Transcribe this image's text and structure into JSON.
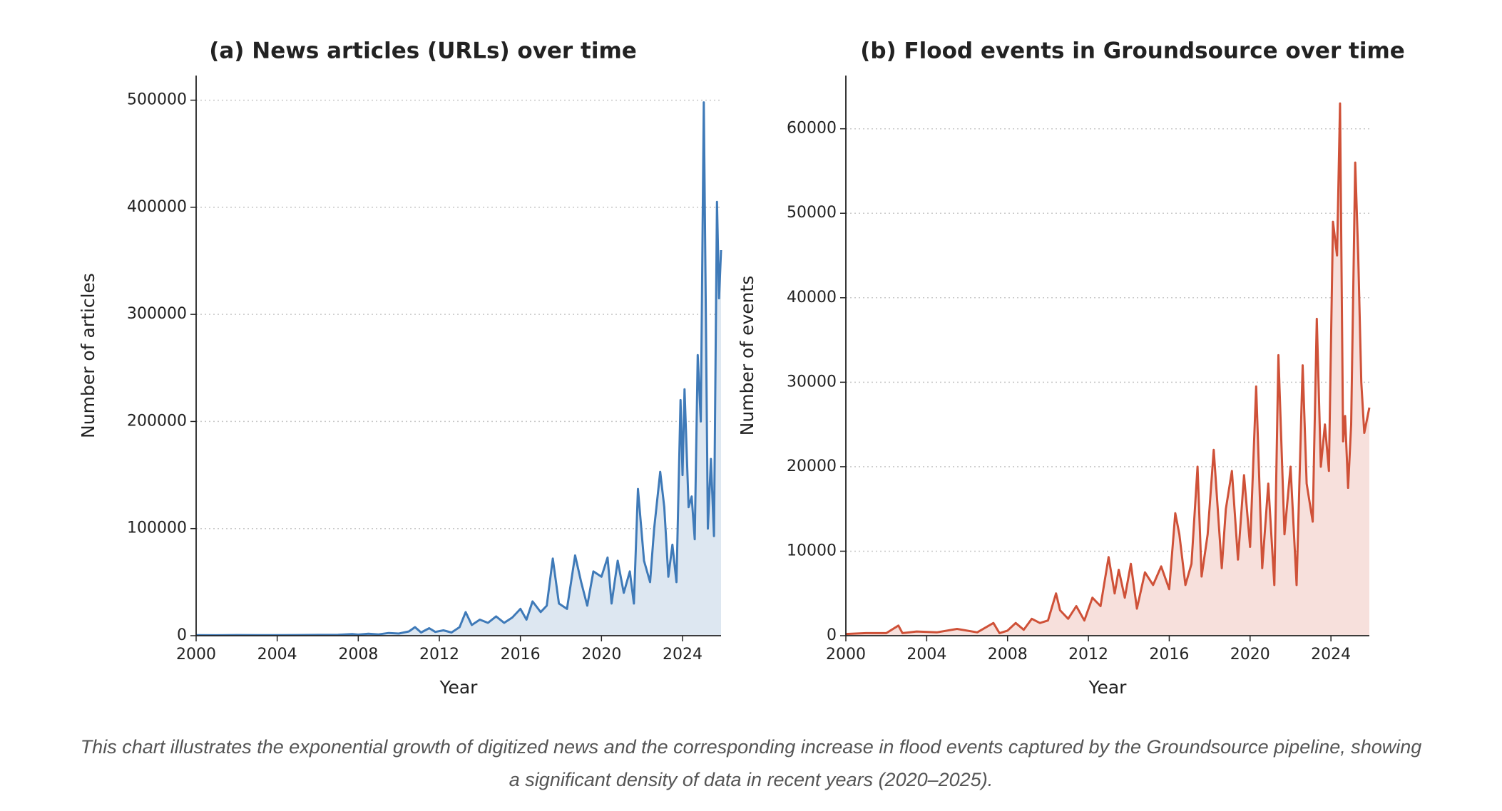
{
  "chart_data": [
    {
      "type": "line",
      "title": "(a)  News articles (URLs) over time",
      "x_label": "Year",
      "y_label": "Number of articles",
      "xlim": [
        2000,
        2025.9
      ],
      "ylim": [
        0,
        523000
      ],
      "xticks": [
        2000,
        2004,
        2008,
        2012,
        2016,
        2020,
        2024
      ],
      "yticks": [
        0,
        100000,
        200000,
        300000,
        400000,
        500000
      ],
      "grid": true,
      "series": [
        {
          "name": "News articles",
          "color": "#3f7ab8",
          "fill": "#dde7f1",
          "x": [
            2000,
            2001,
            2002,
            2003,
            2004,
            2005,
            2006,
            2007,
            2007.7,
            2008,
            2008.5,
            2009,
            2009.5,
            2010,
            2010.5,
            2010.8,
            2011.1,
            2011.5,
            2011.8,
            2012.2,
            2012.6,
            2013,
            2013.3,
            2013.6,
            2014,
            2014.4,
            2014.8,
            2015.2,
            2015.6,
            2016,
            2016.3,
            2016.6,
            2017,
            2017.3,
            2017.6,
            2017.9,
            2018.3,
            2018.7,
            2019,
            2019.3,
            2019.6,
            2020,
            2020.3,
            2020.5,
            2020.8,
            2021.1,
            2021.4,
            2021.6,
            2021.8,
            2022.1,
            2022.4,
            2022.6,
            2022.9,
            2023.1,
            2023.3,
            2023.5,
            2023.7,
            2023.9,
            2024.0,
            2024.1,
            2024.3,
            2024.45,
            2024.6,
            2024.75,
            2024.9,
            2025.05,
            2025.15,
            2025.25,
            2025.4,
            2025.55,
            2025.7,
            2025.8,
            2025.9
          ],
          "values": [
            500,
            400,
            600,
            500,
            500,
            600,
            700,
            800,
            1500,
            1000,
            1800,
            1200,
            2500,
            2000,
            4000,
            8000,
            3000,
            7000,
            3500,
            5000,
            3000,
            8000,
            22000,
            10000,
            15000,
            12000,
            18000,
            12000,
            17000,
            25000,
            15000,
            32000,
            22000,
            28000,
            72000,
            30000,
            25000,
            75000,
            50000,
            28000,
            60000,
            55000,
            73000,
            30000,
            70000,
            40000,
            60000,
            30000,
            137000,
            70000,
            50000,
            100000,
            153000,
            120000,
            55000,
            85000,
            50000,
            220000,
            150000,
            230000,
            120000,
            130000,
            90000,
            262000,
            200000,
            498000,
            300000,
            100000,
            165000,
            93000,
            405000,
            315000,
            360000
          ]
        }
      ]
    },
    {
      "type": "line",
      "title": "(b)  Flood events in Groundsource over time",
      "x_label": "Year",
      "y_label": "Number of events",
      "xlim": [
        2000,
        2025.9
      ],
      "ylim": [
        0,
        66300
      ],
      "xticks": [
        2000,
        2004,
        2008,
        2012,
        2016,
        2020,
        2024
      ],
      "yticks": [
        0,
        10000,
        20000,
        30000,
        40000,
        50000,
        60000
      ],
      "grid": true,
      "series": [
        {
          "name": "Flood events",
          "color": "#cf5138",
          "fill": "#f7e0dc",
          "x": [
            2000,
            2001,
            2002,
            2002.6,
            2002.8,
            2003.5,
            2004.5,
            2005.5,
            2006.5,
            2007.3,
            2007.6,
            2008,
            2008.4,
            2008.8,
            2009.2,
            2009.6,
            2010,
            2010.4,
            2010.6,
            2011,
            2011.4,
            2011.8,
            2012.2,
            2012.6,
            2013,
            2013.3,
            2013.5,
            2013.8,
            2014.1,
            2014.4,
            2014.8,
            2015.2,
            2015.6,
            2016,
            2016.3,
            2016.5,
            2016.8,
            2017.1,
            2017.4,
            2017.6,
            2017.9,
            2018.2,
            2018.6,
            2018.8,
            2019.1,
            2019.4,
            2019.7,
            2020,
            2020.3,
            2020.6,
            2020.9,
            2021.2,
            2021.4,
            2021.7,
            2022,
            2022.3,
            2022.6,
            2022.8,
            2023.1,
            2023.3,
            2023.5,
            2023.7,
            2023.9,
            2024.1,
            2024.3,
            2024.45,
            2024.6,
            2024.7,
            2024.85,
            2025.0,
            2025.2,
            2025.35,
            2025.5,
            2025.65,
            2025.9
          ],
          "values": [
            200,
            300,
            300,
            1200,
            300,
            500,
            400,
            800,
            400,
            1500,
            300,
            600,
            1500,
            700,
            2000,
            1500,
            1800,
            5000,
            3000,
            2000,
            3500,
            1800,
            4500,
            3500,
            9300,
            5000,
            7800,
            4500,
            8500,
            3200,
            7500,
            6000,
            8200,
            5500,
            14500,
            12000,
            6000,
            8500,
            20000,
            7000,
            12000,
            22000,
            8000,
            15000,
            19500,
            9000,
            19000,
            10500,
            29500,
            8000,
            18000,
            6000,
            33200,
            12000,
            20000,
            6000,
            32000,
            18000,
            13500,
            37500,
            20000,
            25000,
            19500,
            49000,
            45000,
            63000,
            23000,
            26000,
            17500,
            25000,
            56000,
            45000,
            30000,
            24000,
            27000
          ]
        }
      ]
    }
  ],
  "caption": "This chart illustrates the exponential growth of digitized news and the corresponding increase in flood events captured by the Groundsource pipeline, showing a significant density of data in recent years (2020–2025)."
}
